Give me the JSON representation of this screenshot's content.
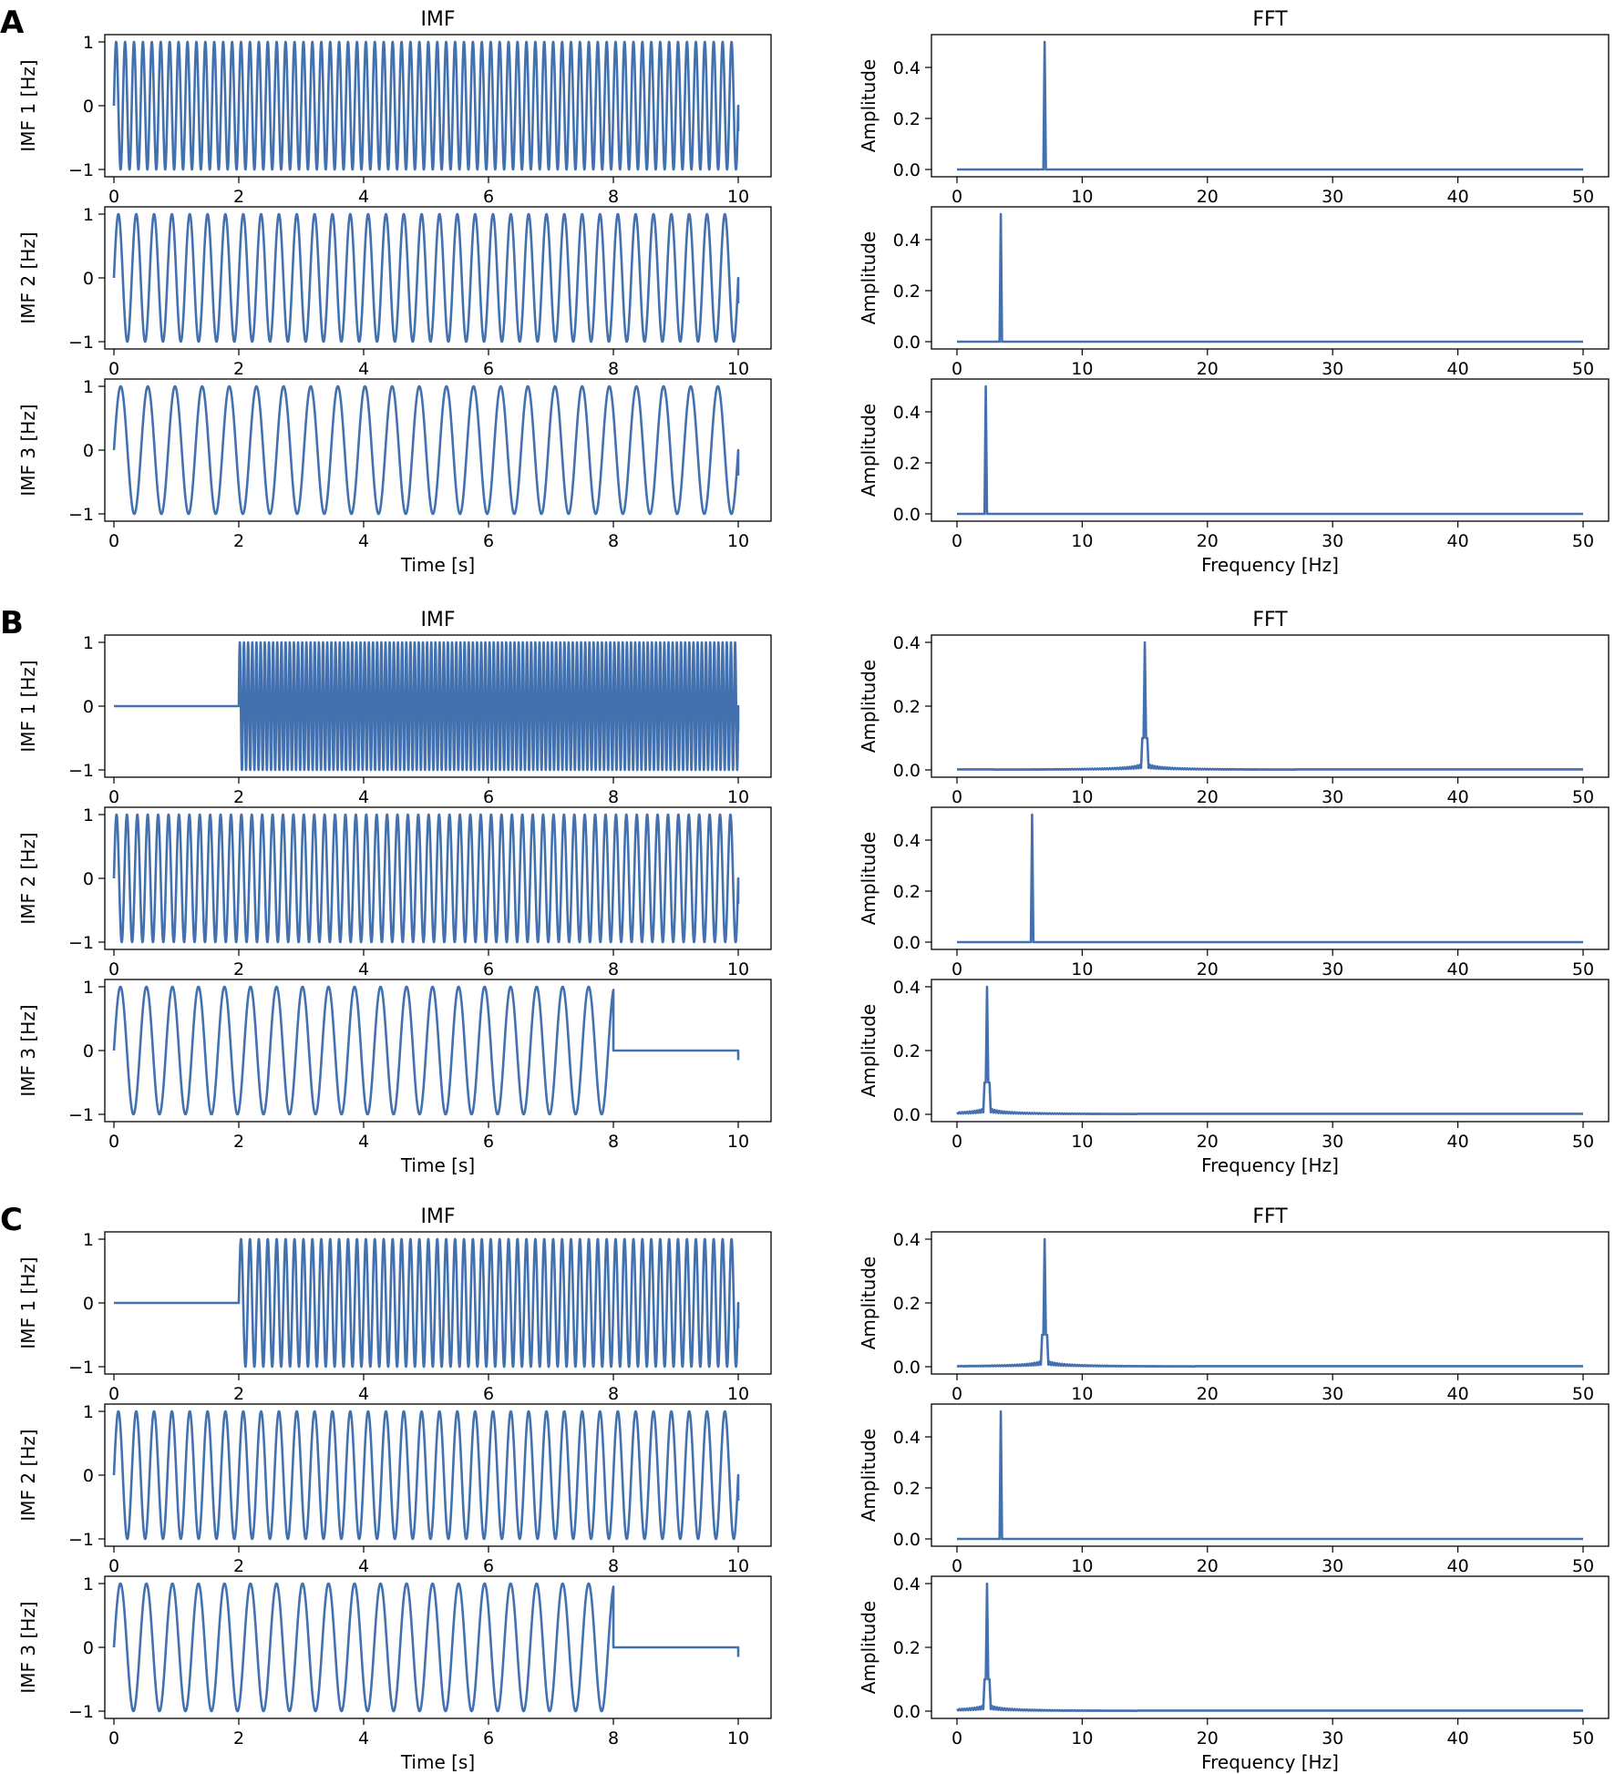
{
  "chart_data": [
    {
      "panel": "A",
      "columns": {
        "left_title": "IMF",
        "right_title": "FFT"
      },
      "time_xlabel": "Time [s]",
      "freq_xlabel": "Frequency [Hz]",
      "time_xticks": [
        0,
        2,
        4,
        6,
        8,
        10
      ],
      "freq_xticks": [
        0,
        10,
        20,
        30,
        40,
        50
      ],
      "imfs": [
        {
          "type": "line",
          "ylabel": "IMF 1 [Hz]",
          "xlim": [
            0,
            10
          ],
          "ylim": [
            -1,
            1
          ],
          "yticks": [
            1,
            0,
            -1
          ],
          "ytick_labels": [
            "1",
            "0",
            "−1"
          ],
          "segments": [
            {
              "t_start": 0,
              "t_end": 10,
              "freq": 7,
              "amp": 1
            }
          ]
        },
        {
          "type": "line",
          "ylabel": "IMF 2 [Hz]",
          "xlim": [
            0,
            10
          ],
          "ylim": [
            -1,
            1
          ],
          "yticks": [
            1,
            0,
            -1
          ],
          "ytick_labels": [
            "1",
            "0",
            "−1"
          ],
          "segments": [
            {
              "t_start": 0,
              "t_end": 10,
              "freq": 3.5,
              "amp": 1
            }
          ]
        },
        {
          "type": "line",
          "ylabel": "IMF 3 [Hz]",
          "xlim": [
            0,
            10
          ],
          "ylim": [
            -1,
            1
          ],
          "yticks": [
            1,
            0,
            -1
          ],
          "ytick_labels": [
            "1",
            "0",
            "−1"
          ],
          "segments": [
            {
              "t_start": 0,
              "t_end": 10,
              "freq": 2.3,
              "amp": 1
            }
          ]
        }
      ],
      "ffts": [
        {
          "type": "line",
          "ylabel": "Amplitude",
          "xlim": [
            0,
            50
          ],
          "yticks": [
            0,
            0.2,
            0.4
          ],
          "ytick_labels": [
            "0.0",
            "0.2",
            "0.4"
          ],
          "ymax": 0.5,
          "peak_freq": 7,
          "peak_amp": 0.5,
          "leakage": 0
        },
        {
          "type": "line",
          "ylabel": "Amplitude",
          "xlim": [
            0,
            50
          ],
          "yticks": [
            0,
            0.2,
            0.4
          ],
          "ytick_labels": [
            "0.0",
            "0.2",
            "0.4"
          ],
          "ymax": 0.5,
          "peak_freq": 3.5,
          "peak_amp": 0.5,
          "leakage": 0
        },
        {
          "type": "line",
          "ylabel": "Amplitude",
          "xlim": [
            0,
            50
          ],
          "yticks": [
            0,
            0.2,
            0.4
          ],
          "ytick_labels": [
            "0.0",
            "0.2",
            "0.4"
          ],
          "ymax": 0.5,
          "peak_freq": 2.3,
          "peak_amp": 0.5,
          "leakage": 0
        }
      ]
    },
    {
      "panel": "B",
      "columns": {
        "left_title": "IMF",
        "right_title": "FFT"
      },
      "time_xlabel": "Time [s]",
      "freq_xlabel": "Frequency [Hz]",
      "time_xticks": [
        0,
        2,
        4,
        6,
        8,
        10
      ],
      "freq_xticks": [
        0,
        10,
        20,
        30,
        40,
        50
      ],
      "imfs": [
        {
          "type": "line",
          "ylabel": "IMF 1 [Hz]",
          "xlim": [
            0,
            10
          ],
          "ylim": [
            -1,
            1
          ],
          "yticks": [
            1,
            0,
            -1
          ],
          "ytick_labels": [
            "1",
            "0",
            "−1"
          ],
          "segments": [
            {
              "t_start": 0,
              "t_end": 2,
              "freq": 0,
              "amp": 0
            },
            {
              "t_start": 2,
              "t_end": 10,
              "freq": 15,
              "amp": 1
            }
          ]
        },
        {
          "type": "line",
          "ylabel": "IMF 2 [Hz]",
          "xlim": [
            0,
            10
          ],
          "ylim": [
            -1,
            1
          ],
          "yticks": [
            1,
            0,
            -1
          ],
          "ytick_labels": [
            "1",
            "0",
            "−1"
          ],
          "segments": [
            {
              "t_start": 0,
              "t_end": 10,
              "freq": 6,
              "amp": 1
            }
          ]
        },
        {
          "type": "line",
          "ylabel": "IMF 3 [Hz]",
          "xlim": [
            0,
            10
          ],
          "ylim": [
            -1,
            1
          ],
          "yticks": [
            1,
            0,
            -1
          ],
          "ytick_labels": [
            "1",
            "0",
            "−1"
          ],
          "segments": [
            {
              "t_start": 0,
              "t_end": 8,
              "freq": 2.4,
              "amp": 1
            },
            {
              "t_start": 8,
              "t_end": 10,
              "freq": 0,
              "amp": 0
            }
          ]
        }
      ],
      "ffts": [
        {
          "type": "line",
          "ylabel": "Amplitude",
          "xlim": [
            0,
            50
          ],
          "yticks": [
            0,
            0.2,
            0.4
          ],
          "ytick_labels": [
            "0.0",
            "0.2",
            "0.4"
          ],
          "ymax": 0.4,
          "peak_freq": 15,
          "peak_amp": 0.4,
          "leakage": 1
        },
        {
          "type": "line",
          "ylabel": "Amplitude",
          "xlim": [
            0,
            50
          ],
          "yticks": [
            0,
            0.2,
            0.4
          ],
          "ytick_labels": [
            "0.0",
            "0.2",
            "0.4"
          ],
          "ymax": 0.5,
          "peak_freq": 6,
          "peak_amp": 0.5,
          "leakage": 0
        },
        {
          "type": "line",
          "ylabel": "Amplitude",
          "xlim": [
            0,
            50
          ],
          "yticks": [
            0,
            0.2,
            0.4
          ],
          "ytick_labels": [
            "0.0",
            "0.2",
            "0.4"
          ],
          "ymax": 0.4,
          "peak_freq": 2.4,
          "peak_amp": 0.4,
          "leakage": 1
        }
      ]
    },
    {
      "panel": "C",
      "columns": {
        "left_title": "IMF",
        "right_title": "FFT"
      },
      "time_xlabel": "Time [s]",
      "freq_xlabel": "Frequency [Hz]",
      "time_xticks": [
        0,
        2,
        4,
        6,
        8,
        10
      ],
      "freq_xticks": [
        0,
        10,
        20,
        30,
        40,
        50
      ],
      "imfs": [
        {
          "type": "line",
          "ylabel": "IMF 1 [Hz]",
          "xlim": [
            0,
            10
          ],
          "ylim": [
            -1,
            1
          ],
          "yticks": [
            1,
            0,
            -1
          ],
          "ytick_labels": [
            "1",
            "0",
            "−1"
          ],
          "segments": [
            {
              "t_start": 0,
              "t_end": 2,
              "freq": 0,
              "amp": 0
            },
            {
              "t_start": 2,
              "t_end": 10,
              "freq": 7,
              "amp": 1
            }
          ]
        },
        {
          "type": "line",
          "ylabel": "IMF 2 [Hz]",
          "xlim": [
            0,
            10
          ],
          "ylim": [
            -1,
            1
          ],
          "yticks": [
            1,
            0,
            -1
          ],
          "ytick_labels": [
            "1",
            "0",
            "−1"
          ],
          "segments": [
            {
              "t_start": 0,
              "t_end": 10,
              "freq": 3.5,
              "amp": 1
            }
          ]
        },
        {
          "type": "line",
          "ylabel": "IMF 3 [Hz]",
          "xlim": [
            0,
            10
          ],
          "ylim": [
            -1,
            1
          ],
          "yticks": [
            1,
            0,
            -1
          ],
          "ytick_labels": [
            "1",
            "0",
            "−1"
          ],
          "segments": [
            {
              "t_start": 0,
              "t_end": 8,
              "freq": 2.4,
              "amp": 1
            },
            {
              "t_start": 8,
              "t_end": 10,
              "freq": 0,
              "amp": 0
            }
          ]
        }
      ],
      "ffts": [
        {
          "type": "line",
          "ylabel": "Amplitude",
          "xlim": [
            0,
            50
          ],
          "yticks": [
            0,
            0.2,
            0.4
          ],
          "ytick_labels": [
            "0.0",
            "0.2",
            "0.4"
          ],
          "ymax": 0.4,
          "peak_freq": 7,
          "peak_amp": 0.4,
          "leakage": 1
        },
        {
          "type": "line",
          "ylabel": "Amplitude",
          "xlim": [
            0,
            50
          ],
          "yticks": [
            0,
            0.2,
            0.4
          ],
          "ytick_labels": [
            "0.0",
            "0.2",
            "0.4"
          ],
          "ymax": 0.5,
          "peak_freq": 3.5,
          "peak_amp": 0.5,
          "leakage": 0
        },
        {
          "type": "line",
          "ylabel": "Amplitude",
          "xlim": [
            0,
            50
          ],
          "yticks": [
            0,
            0.2,
            0.4
          ],
          "ytick_labels": [
            "0.0",
            "0.2",
            "0.4"
          ],
          "ymax": 0.4,
          "peak_freq": 2.4,
          "peak_amp": 0.4,
          "leakage": 1
        }
      ]
    }
  ]
}
